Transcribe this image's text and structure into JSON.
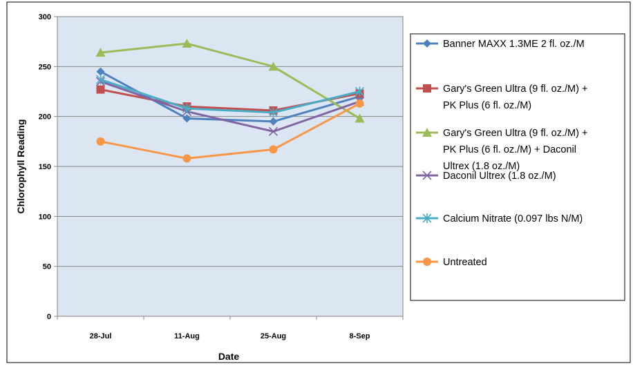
{
  "chart_data": {
    "type": "line",
    "title": "",
    "xlabel": "Date",
    "ylabel": "Chlorophyll Reading",
    "categories": [
      "28-Jul",
      "11-Aug",
      "25-Aug",
      "8-Sep"
    ],
    "ylim": [
      0,
      300
    ],
    "yticks": [
      0,
      50,
      100,
      150,
      200,
      250,
      300
    ],
    "grid": true,
    "legend_position": "right",
    "plot_background": "#dce6f2",
    "series": [
      {
        "name": "Banner MAXX 1.3ME 2 fl. oz./M",
        "legend_lines": [
          "Banner MAXX 1.3ME 2 fl. oz./M"
        ],
        "values": [
          245,
          198,
          195,
          220
        ],
        "color": "#4f81bd",
        "marker": "diamond"
      },
      {
        "name": "Gary's Green Ultra (9 fl. oz./M) + PK Plus (6 fl. oz./M)",
        "legend_lines": [
          "Gary's Green Ultra (9 fl. oz./M) +",
          "PK Plus (6 fl. oz./M)"
        ],
        "values": [
          227,
          210,
          206,
          223
        ],
        "color": "#c0504d",
        "marker": "square"
      },
      {
        "name": "Gary's Green Ultra (9 fl. oz./M) + PK Plus (6 fl. oz./M) + Daconil Ultrex (1.8 oz./M)",
        "legend_lines": [
          "Gary's Green Ultra (9 fl. oz./M) +",
          "PK Plus (6 fl. oz./M) + Daconil",
          "Ultrex (1.8 oz./M)"
        ],
        "values": [
          264,
          273,
          250,
          198
        ],
        "color": "#9bbb59",
        "marker": "triangle"
      },
      {
        "name": "Daconil Ultrex (1.8 oz./M)",
        "legend_lines": [
          "Daconil Ultrex (1.8 oz./M)"
        ],
        "values": [
          235,
          205,
          185,
          215
        ],
        "color": "#8064a2",
        "marker": "x"
      },
      {
        "name": "Calcium Nitrate (0.097 lbs N/M)",
        "legend_lines": [
          "Calcium Nitrate (0.097 lbs N/M)"
        ],
        "values": [
          237,
          208,
          204,
          225
        ],
        "color": "#4bacc6",
        "marker": "star"
      },
      {
        "name": "Untreated",
        "legend_lines": [
          "Untreated"
        ],
        "values": [
          175,
          158,
          167,
          213
        ],
        "color": "#f79646",
        "marker": "circle"
      }
    ]
  }
}
